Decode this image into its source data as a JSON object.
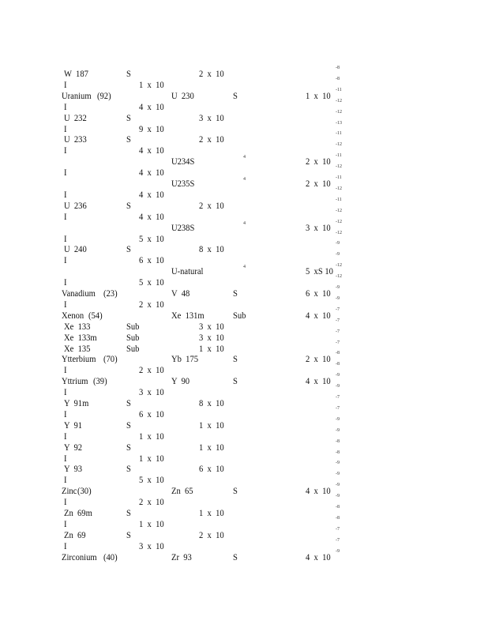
{
  "rows": [
    {
      "nuclide": "W  187",
      "class": "S",
      "value_s": "2  x  10",
      "exp": "-8"
    },
    {
      "nuclide": "I",
      "value_i": "1  x  10",
      "exp": "-8"
    },
    {
      "element": "Uranium",
      "z": "(92)",
      "nuclide2": "U  230",
      "class2": "S",
      "value2": "1  x  10",
      "exp": "-11"
    },
    {
      "nuclide": "I",
      "value_i": "4  x  10",
      "exp": "-12"
    },
    {
      "nuclide": "U  232",
      "class": "S",
      "value_s": "3  x  10",
      "exp": "-12"
    },
    {
      "nuclide": "I",
      "value_i": "9  x  10",
      "exp": "-13"
    },
    {
      "nuclide": "U  233",
      "class": "S",
      "value_s": "2  x  10",
      "exp": "-11"
    },
    {
      "nuclide": "I",
      "value_i": "4  x  10",
      "exp": "-12"
    },
    {
      "nuclide2": "U234S",
      "mark": "4",
      "value2": "2  x  10",
      "exp": "-11"
    },
    {
      "nuclide": "I",
      "value_i": "4  x  10",
      "exp": "-12"
    },
    {
      "nuclide2": "U235S",
      "mark": "4",
      "value2": "2  x  10",
      "exp": "-11"
    },
    {
      "nuclide": "I",
      "value_i": "4  x  10",
      "exp": "-12"
    },
    {
      "nuclide": "U  236",
      "class": "S",
      "value_s": "2  x  10",
      "exp": "-11"
    },
    {
      "nuclide": "I",
      "value_i": "4  x  10",
      "exp": "-12"
    },
    {
      "nuclide2": "U238S",
      "mark": "4",
      "value2": "3  x  10",
      "exp": "-12"
    },
    {
      "nuclide": "I",
      "value_i": "5  x  10",
      "exp": "-12"
    },
    {
      "nuclide": "U  240",
      "class": "S",
      "value_s": "8  x  10",
      "exp": "-9"
    },
    {
      "nuclide": "I",
      "value_i": "6  x  10",
      "exp": "-9"
    },
    {
      "nuclide2": "U-natural",
      "mark": "4",
      "value2": "5  xS 10",
      "exp": "-12"
    },
    {
      "nuclide": "I",
      "value_i": "5  x  10",
      "exp": "-12"
    },
    {
      "element": "Vanadium",
      "z": "(23)",
      "nuclide2": "V  48",
      "class2": "S",
      "value2": "6  x  10",
      "exp": "-9"
    },
    {
      "nuclide": "I",
      "value_i": "2  x  10",
      "exp": "-9"
    },
    {
      "element": "Xenon",
      "z": "(54)",
      "nuclide2": "Xe  131m",
      "class2": "Sub",
      "value2": "4  x  10",
      "exp": "-7"
    },
    {
      "nuclide": "Xe  133",
      "class": "Sub",
      "value_s": "3  x  10",
      "exp": "-7"
    },
    {
      "nuclide": "Xe  133m",
      "class": "Sub",
      "value_s": "3  x  10",
      "exp": "-7"
    },
    {
      "nuclide": "Xe  135",
      "class": "Sub",
      "value_s": "1  x  10",
      "exp": "-7"
    },
    {
      "element": "Ytterbium",
      "z": "(70)",
      "nuclide2": "Yb  175",
      "class2": "S",
      "value2": "2  x  10",
      "exp": "-8"
    },
    {
      "nuclide": "I",
      "value_i": "2  x  10",
      "exp": "-8"
    },
    {
      "element": "Yttrium",
      "z": "(39)",
      "nuclide2": "Y  90",
      "class2": "S",
      "value2": "4  x  10",
      "exp": "-9"
    },
    {
      "nuclide": "I",
      "value_i": "3  x  10",
      "exp": "-9"
    },
    {
      "nuclide": "Y  91m",
      "class": "S",
      "value_s": "8  x  10",
      "exp": "-7"
    },
    {
      "nuclide": "I",
      "value_i": "6  x  10",
      "exp": "-7"
    },
    {
      "nuclide": "Y  91",
      "class": "S",
      "value_s": "1  x  10",
      "exp": "-9"
    },
    {
      "nuclide": "I",
      "value_i": "1  x  10",
      "exp": "-9"
    },
    {
      "nuclide": "Y  92",
      "class": "S",
      "value_s": "1  x  10",
      "exp": "-8"
    },
    {
      "nuclide": "I",
      "value_i": "1  x  10",
      "exp": "-8"
    },
    {
      "nuclide": "Y  93",
      "class": "S",
      "value_s": "6  x  10",
      "exp": "-9"
    },
    {
      "nuclide": "I",
      "value_i": "5  x  10",
      "exp": "-9"
    },
    {
      "element": "Zinc",
      "z": "(30)",
      "nuclide2": "Zn  65",
      "class2": "S",
      "value2": "4  x  10",
      "exp": "-9"
    },
    {
      "nuclide": "I",
      "value_i": "2  x  10",
      "exp": "-9"
    },
    {
      "nuclide": "Zn  69m",
      "class": "S",
      "value_s": "1  x  10",
      "exp": "-8"
    },
    {
      "nuclide": "I",
      "value_i": "1  x  10",
      "exp": "-8"
    },
    {
      "nuclide": "Zn  69",
      "class": "S",
      "value_s": "2  x  10",
      "exp": "-7"
    },
    {
      "nuclide": "I",
      "value_i": "3  x  10",
      "exp": "-7"
    },
    {
      "element": "Zirconium",
      "z": "(40)",
      "nuclide2": "Zr  93",
      "class2": "S",
      "value2": "4  x  10",
      "exp": "-9"
    }
  ]
}
